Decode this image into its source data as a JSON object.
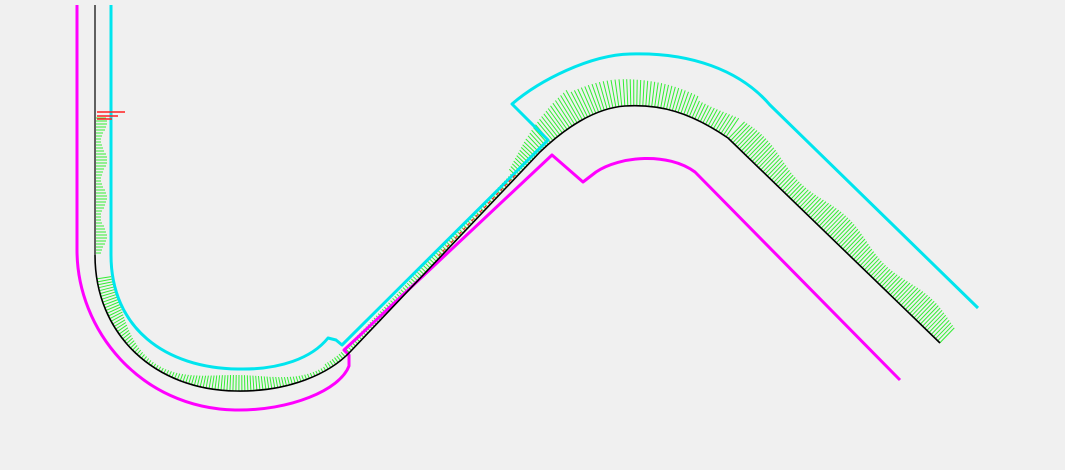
{
  "view": {
    "background": "#f0f0f0"
  },
  "layers": {
    "left_boundary": {
      "color": "#ff00ff"
    },
    "right_boundary": {
      "color": "#00e5ee"
    },
    "centerline": {
      "color": "#000000"
    },
    "profile_hatch": {
      "color": "#33ee33"
    },
    "markers": {
      "color": "#ff2020"
    }
  }
}
